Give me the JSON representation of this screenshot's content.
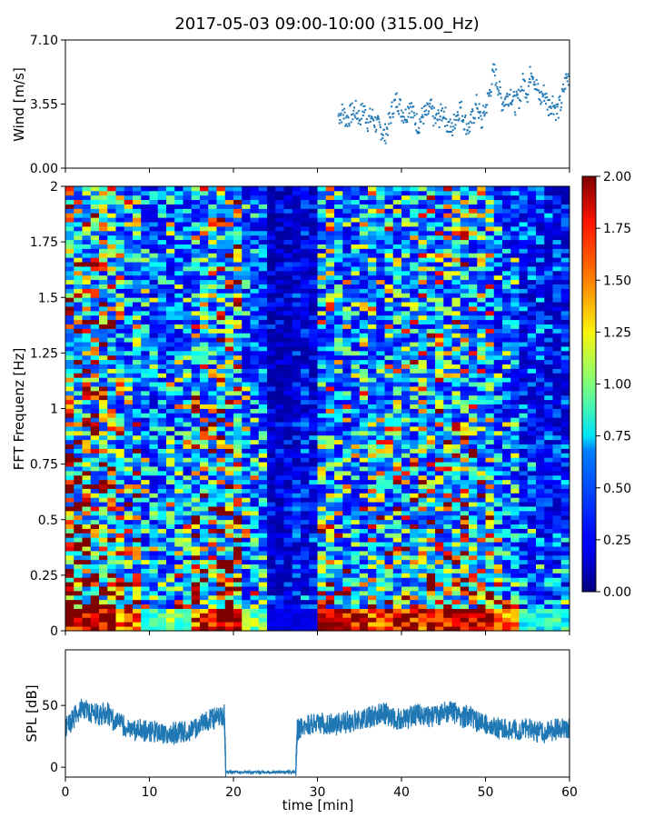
{
  "figure": {
    "title": "2017-05-03 09:00-10:00 (315.00_Hz)"
  },
  "chart_data": [
    {
      "id": "wind",
      "type": "scatter",
      "title": "",
      "xlabel": "",
      "ylabel": "Wind [m/s]",
      "xlim": [
        0,
        60
      ],
      "ylim": [
        0,
        7.1
      ],
      "yticks": [
        0.0,
        3.55,
        7.1
      ],
      "ytick_labels": [
        "0.00",
        "3.55",
        "7.10"
      ],
      "xtick_labels_shown": false,
      "color": "#1f77b4",
      "grid": false,
      "series": [
        {
          "x": [
            32.5,
            33.0,
            33.5,
            34.0,
            34.5,
            35.0,
            35.5,
            36.0,
            36.5,
            37.0,
            37.5,
            38.0,
            38.5,
            39.0,
            39.5,
            40.0,
            40.5,
            41.0,
            41.5,
            42.0,
            42.5,
            43.0,
            43.5,
            44.0,
            44.5,
            45.0,
            45.5,
            46.0,
            46.5,
            47.0,
            47.5,
            48.0,
            48.5,
            49.0,
            49.5,
            50.0,
            50.5,
            51.0,
            51.5,
            52.0,
            52.5,
            53.0,
            53.5,
            54.0,
            54.5,
            55.0,
            55.5,
            56.0,
            56.5,
            57.0,
            57.5,
            58.0,
            58.5,
            59.0,
            59.5,
            60.0
          ],
          "y": [
            2.9,
            3.1,
            2.7,
            3.0,
            3.2,
            2.8,
            3.3,
            2.6,
            2.9,
            2.4,
            2.2,
            1.8,
            2.5,
            3.4,
            3.8,
            3.2,
            2.9,
            3.6,
            2.8,
            2.4,
            2.9,
            3.0,
            3.3,
            2.6,
            2.8,
            3.2,
            2.4,
            2.1,
            2.9,
            3.4,
            2.6,
            2.2,
            2.8,
            3.6,
            2.5,
            3.3,
            4.2,
            5.4,
            4.6,
            3.6,
            3.9,
            4.2,
            3.5,
            3.9,
            4.8,
            4.2,
            5.6,
            4.6,
            3.8,
            4.2,
            3.4,
            3.7,
            3.1,
            3.6,
            4.8,
            5.2
          ]
        }
      ]
    },
    {
      "id": "spectrogram",
      "type": "heatmap",
      "title": "",
      "xlabel": "",
      "ylabel": "FFT Frequenz [Hz]",
      "xlim": [
        0,
        60
      ],
      "ylim": [
        0,
        2
      ],
      "yticks": [
        0,
        0.25,
        0.5,
        0.75,
        1,
        1.25,
        1.5,
        1.75,
        2
      ],
      "ytick_labels": [
        "0",
        "0.25",
        "0.5",
        "0.75",
        "1",
        "1.25",
        "1.5",
        "1.75",
        "2"
      ],
      "xtick_labels_shown": false,
      "colormap": "jet",
      "colorbar": {
        "min": 0,
        "max": 2,
        "ticks": [
          0.0,
          0.25,
          0.5,
          0.75,
          1.0,
          1.25,
          1.5,
          1.75,
          2.0
        ],
        "tick_labels": [
          "0.00",
          "0.25",
          "0.50",
          "0.75",
          "1.00",
          "1.25",
          "1.50",
          "1.75",
          "2.00"
        ]
      },
      "time_columns_min": [
        0,
        3,
        6,
        9,
        12,
        15,
        18,
        21,
        24,
        27,
        30,
        33,
        36,
        39,
        42,
        45,
        48,
        51,
        54,
        57
      ],
      "mean_intensity_by_column": [
        0.95,
        0.85,
        0.65,
        0.45,
        0.5,
        0.75,
        0.8,
        0.45,
        0.15,
        0.2,
        0.6,
        0.55,
        0.6,
        0.65,
        0.7,
        0.7,
        0.65,
        0.45,
        0.3,
        0.25
      ],
      "low_frequency_band_max_hz": 0.1,
      "low_frequency_band_intensity": [
        2.0,
        2.0,
        1.6,
        0.9,
        1.0,
        1.7,
        2.0,
        1.0,
        0.2,
        0.2,
        2.0,
        1.8,
        1.7,
        1.9,
        1.8,
        2.0,
        2.0,
        1.6,
        0.8,
        0.8
      ]
    },
    {
      "id": "spl",
      "type": "line",
      "title": "",
      "xlabel": "time [min]",
      "ylabel": "SPL [dB]",
      "xlim": [
        0,
        60
      ],
      "ylim": [
        -8,
        95
      ],
      "yticks": [
        0,
        50
      ],
      "ytick_labels": [
        "0",
        "50"
      ],
      "xticks": [
        0,
        10,
        20,
        30,
        40,
        50,
        60
      ],
      "xtick_labels": [
        "0",
        "10",
        "20",
        "30",
        "40",
        "50",
        "60"
      ],
      "color": "#1f77b4",
      "grid": false,
      "series": [
        {
          "x": [
            0,
            1,
            2,
            3,
            4,
            5,
            6,
            7,
            8,
            9,
            10,
            11,
            12,
            13,
            14,
            15,
            16,
            17,
            18,
            18.9,
            19.1,
            20,
            21,
            22,
            23,
            24,
            25,
            26,
            27,
            27.4,
            27.6,
            28,
            29,
            30,
            31,
            32,
            33,
            34,
            35,
            36,
            37,
            38,
            39,
            40,
            41,
            42,
            43,
            44,
            45,
            46,
            47,
            48,
            49,
            50,
            51,
            52,
            53,
            54,
            55,
            56,
            57,
            58,
            59,
            60
          ],
          "y": [
            32,
            40,
            48,
            45,
            42,
            44,
            36,
            33,
            31,
            30,
            29,
            28,
            27,
            28,
            29,
            30,
            34,
            38,
            40,
            42,
            -4,
            -4,
            -4,
            -4,
            -4,
            -4,
            -4,
            -4,
            -4,
            -4,
            30,
            32,
            34,
            36,
            35,
            34,
            36,
            37,
            38,
            40,
            42,
            44,
            40,
            38,
            41,
            43,
            40,
            42,
            44,
            45,
            40,
            42,
            37,
            35,
            32,
            31,
            31,
            30,
            31,
            29,
            28,
            30,
            31,
            32
          ]
        }
      ]
    }
  ]
}
